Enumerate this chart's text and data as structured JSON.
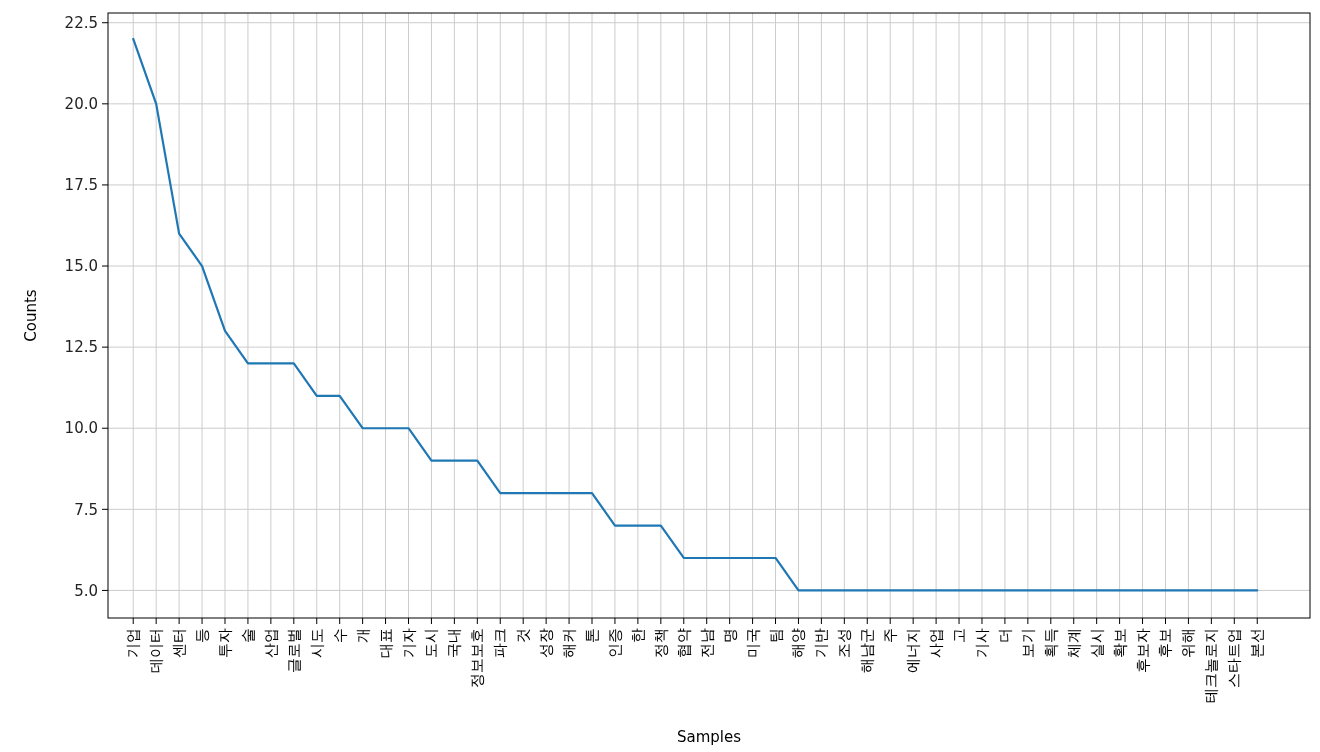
{
  "chart_data": {
    "type": "line",
    "xlabel": "Samples",
    "ylabel": "Counts",
    "categories": [
      "기업",
      "데이터",
      "센터",
      "등",
      "투자",
      "술",
      "산업",
      "글로벌",
      "시도",
      "수",
      "개",
      "대표",
      "기자",
      "도시",
      "국내",
      "정보보호",
      "파크",
      "것",
      "성장",
      "해커",
      "톤",
      "인증",
      "한",
      "정책",
      "협약",
      "전남",
      "명",
      "미국",
      "팀",
      "해양",
      "기반",
      "조성",
      "해남군",
      "주",
      "에너지",
      "사업",
      "고",
      "기사",
      "더",
      "보기",
      "획득",
      "체계",
      "실시",
      "확보",
      "후보자",
      "후보",
      "위해",
      "테크놀로지",
      "스타트업",
      "본선"
    ],
    "series": [
      {
        "color": "#1f77b4",
        "values": [
          22,
          20,
          16,
          15,
          13,
          12,
          12,
          12,
          11,
          11,
          10,
          10,
          10,
          9,
          9,
          9,
          8,
          8,
          8,
          8,
          8,
          7,
          7,
          7,
          6,
          6,
          6,
          6,
          6,
          5,
          5,
          5,
          5,
          5,
          5,
          5,
          5,
          5,
          5,
          5,
          5,
          5,
          5,
          5,
          5,
          5,
          5,
          5,
          5,
          5
        ]
      }
    ],
    "ylim": [
      4.15,
      22.8
    ],
    "yticks": [
      {
        "value": 5,
        "label": "5.0"
      },
      {
        "value": 7.5,
        "label": "7.5"
      },
      {
        "value": 10,
        "label": "10.0"
      },
      {
        "value": 12.5,
        "label": "12.5"
      },
      {
        "value": 15,
        "label": "15.0"
      },
      {
        "value": 17.5,
        "label": "17.5"
      },
      {
        "value": 20,
        "label": "20.0"
      },
      {
        "value": 22.5,
        "label": "22.5"
      }
    ],
    "grid": true,
    "line_style": "solid"
  }
}
